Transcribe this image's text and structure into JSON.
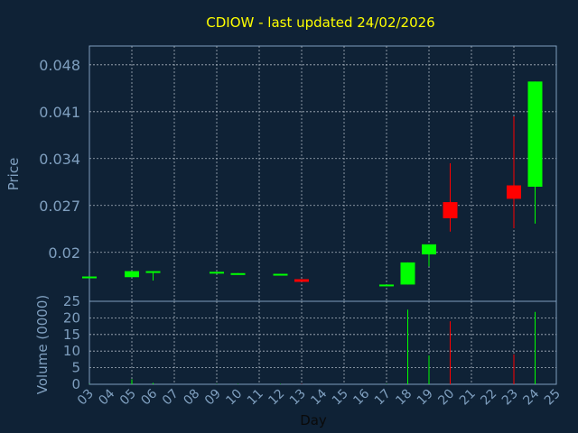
{
  "chart_data": {
    "type": "candlestick",
    "title": "CDIOW - last updated 24/02/2026",
    "price_axis": {
      "label": "Price",
      "ticks": [
        "0.048",
        "0.041",
        "0.034",
        "0.027",
        "0.02"
      ],
      "tick_values": [
        0.048,
        0.041,
        0.034,
        0.027,
        0.02
      ],
      "ylim": [
        0.0127,
        0.0508
      ]
    },
    "volume_axis": {
      "label": "Volume (0000)",
      "ticks": [
        "25",
        "20",
        "15",
        "10",
        "5",
        "0"
      ],
      "tick_values": [
        25,
        20,
        15,
        10,
        5,
        0
      ],
      "ylim": [
        0,
        25
      ]
    },
    "x_axis": {
      "label": "Day",
      "ticks": [
        "03",
        "04",
        "05",
        "06",
        "07",
        "08",
        "09",
        "10",
        "11",
        "12",
        "13",
        "14",
        "15",
        "16",
        "17",
        "18",
        "19",
        "20",
        "21",
        "22",
        "23",
        "24",
        "25"
      ],
      "tick_values": [
        3,
        4,
        5,
        6,
        7,
        8,
        9,
        10,
        11,
        12,
        13,
        14,
        15,
        16,
        17,
        18,
        19,
        20,
        21,
        22,
        23,
        24,
        25
      ],
      "xlim": [
        3,
        25
      ]
    },
    "grid": true,
    "colors": {
      "up": "#00ff00",
      "down": "#ff0000",
      "background": "#0f2236",
      "title": "#ffff00",
      "axis_text": "#7f9fbf"
    },
    "candles": [
      {
        "day": 3,
        "open": 0.0164,
        "close": 0.0164,
        "high": 0.0164,
        "low": 0.0164
      },
      {
        "day": 5,
        "open": 0.0163,
        "close": 0.0172,
        "high": 0.0172,
        "low": 0.0163
      },
      {
        "day": 6,
        "open": 0.017,
        "close": 0.0172,
        "high": 0.0172,
        "low": 0.0158
      },
      {
        "day": 9,
        "open": 0.0169,
        "close": 0.0171,
        "high": 0.0171,
        "low": 0.0169
      },
      {
        "day": 10,
        "open": 0.0167,
        "close": 0.0169,
        "high": 0.0169,
        "low": 0.0167
      },
      {
        "day": 12,
        "open": 0.0166,
        "close": 0.0168,
        "high": 0.0168,
        "low": 0.0166
      },
      {
        "day": 13,
        "open": 0.016,
        "close": 0.0156,
        "high": 0.016,
        "low": 0.0156
      },
      {
        "day": 17,
        "open": 0.015,
        "close": 0.0152,
        "high": 0.0152,
        "low": 0.015
      },
      {
        "day": 18,
        "open": 0.0152,
        "close": 0.0185,
        "high": 0.0185,
        "low": 0.0152
      },
      {
        "day": 19,
        "open": 0.0197,
        "close": 0.0212,
        "high": 0.0212,
        "low": 0.0179
      },
      {
        "day": 20,
        "open": 0.0275,
        "close": 0.0251,
        "high": 0.0333,
        "low": 0.0231
      },
      {
        "day": 23,
        "open": 0.03,
        "close": 0.028,
        "high": 0.0403,
        "low": 0.0236
      },
      {
        "day": 24,
        "open": 0.0298,
        "close": 0.0455,
        "high": 0.0455,
        "low": 0.0243
      }
    ],
    "volumes": [
      {
        "day": 3,
        "value": 0.1,
        "color": "up"
      },
      {
        "day": 5,
        "value": 1.5,
        "color": "up"
      },
      {
        "day": 6,
        "value": 0.4,
        "color": "up"
      },
      {
        "day": 9,
        "value": 0.1,
        "color": "up"
      },
      {
        "day": 10,
        "value": 0.1,
        "color": "up"
      },
      {
        "day": 12,
        "value": 0.1,
        "color": "up"
      },
      {
        "day": 13,
        "value": 0.1,
        "color": "down"
      },
      {
        "day": 17,
        "value": 0.1,
        "color": "up"
      },
      {
        "day": 18,
        "value": 22.5,
        "color": "up"
      },
      {
        "day": 19,
        "value": 8.7,
        "color": "up"
      },
      {
        "day": 20,
        "value": 19.0,
        "color": "down"
      },
      {
        "day": 23,
        "value": 9.0,
        "color": "down"
      },
      {
        "day": 24,
        "value": 21.8,
        "color": "up"
      }
    ]
  }
}
